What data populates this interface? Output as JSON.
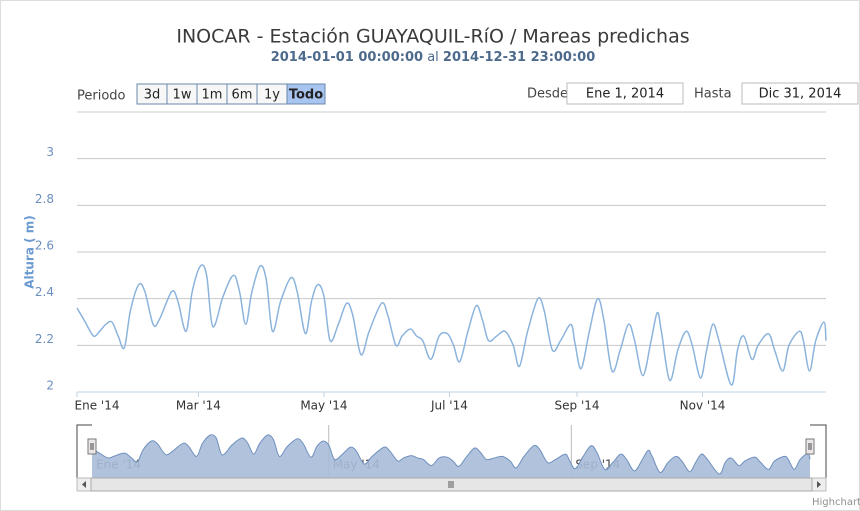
{
  "chart_data": {
    "type": "line",
    "title": "INOCAR - Estación GUAYAQUIL-RíO / Mareas predichas",
    "subtitle": {
      "start": "2014-01-01 00:00:00",
      "joiner": "al",
      "end": "2014-12-31 23:00:00"
    },
    "y_label": "Altura ( m)",
    "color": "#8cb4dc",
    "grid": true,
    "x": [
      0,
      4,
      8,
      11,
      14,
      17,
      20,
      23,
      26,
      30,
      33,
      37,
      40,
      46,
      49,
      53,
      56,
      60,
      63,
      66,
      71,
      76,
      79,
      82,
      85,
      89,
      92,
      95,
      99,
      104,
      107,
      111,
      114,
      117,
      120,
      123,
      127,
      131,
      134,
      138,
      142,
      148,
      151,
      155,
      158,
      162,
      165,
      168,
      172,
      176,
      180,
      183,
      186,
      190,
      194,
      197,
      200,
      204,
      208,
      212,
      215,
      219,
      224,
      227,
      231,
      235,
      240,
      242,
      245,
      249,
      253,
      256,
      260,
      264,
      268,
      271,
      275,
      279,
      282,
      284,
      288,
      292,
      296,
      299,
      303,
      306,
      309,
      312,
      318,
      321,
      324,
      328,
      331,
      336,
      339,
      343,
      346,
      351,
      353,
      356,
      359,
      363,
      364
    ],
    "values": [
      2.36,
      2.3,
      2.24,
      2.26,
      2.29,
      2.3,
      2.24,
      2.19,
      2.35,
      2.46,
      2.43,
      2.29,
      2.31,
      2.43,
      2.39,
      2.26,
      2.43,
      2.54,
      2.5,
      2.28,
      2.41,
      2.5,
      2.43,
      2.29,
      2.43,
      2.54,
      2.48,
      2.26,
      2.39,
      2.49,
      2.43,
      2.25,
      2.39,
      2.46,
      2.41,
      2.22,
      2.29,
      2.38,
      2.33,
      2.16,
      2.26,
      2.38,
      2.33,
      2.2,
      2.24,
      2.27,
      2.24,
      2.22,
      2.14,
      2.24,
      2.25,
      2.2,
      2.13,
      2.26,
      2.37,
      2.31,
      2.22,
      2.24,
      2.26,
      2.2,
      2.11,
      2.26,
      2.4,
      2.35,
      2.18,
      2.22,
      2.29,
      2.21,
      2.1,
      2.26,
      2.4,
      2.31,
      2.09,
      2.18,
      2.29,
      2.22,
      2.07,
      2.22,
      2.34,
      2.26,
      2.05,
      2.18,
      2.26,
      2.2,
      2.06,
      2.18,
      2.29,
      2.22,
      2.03,
      2.18,
      2.24,
      2.14,
      2.2,
      2.25,
      2.18,
      2.09,
      2.2,
      2.26,
      2.22,
      2.09,
      2.22,
      2.3,
      2.22
    ],
    "xlim": [
      0,
      364
    ],
    "xticks": [
      {
        "value": 0,
        "label": "Ene '14"
      },
      {
        "value": 59,
        "label": "Mar '14"
      },
      {
        "value": 120,
        "label": "May '14"
      },
      {
        "value": 181,
        "label": "Jul '14"
      },
      {
        "value": 243,
        "label": "Sep '14"
      },
      {
        "value": 304,
        "label": "Nov '14"
      }
    ],
    "ylim": [
      2,
      3.2
    ],
    "yticks": [
      2,
      2.2,
      2.4,
      2.6,
      2.8,
      3
    ],
    "range_selector": {
      "label": "Periodo",
      "buttons": [
        "3d",
        "1w",
        "1m",
        "6m",
        "1y",
        "Todo"
      ],
      "selected": 5
    },
    "inputs": {
      "from_label": "Desde",
      "from": "Ene 1, 2014",
      "to_label": "Hasta",
      "to": "Dic 31, 2014"
    },
    "navigator": {
      "color": "#a8bcd8",
      "line_color": "#6e8fbe",
      "xticks": [
        {
          "value": 0,
          "label": "Ene '14"
        },
        {
          "value": 120,
          "label": "May '14"
        },
        {
          "value": 243,
          "label": "Sep '14"
        }
      ]
    },
    "credits": "Highcharts.com"
  }
}
